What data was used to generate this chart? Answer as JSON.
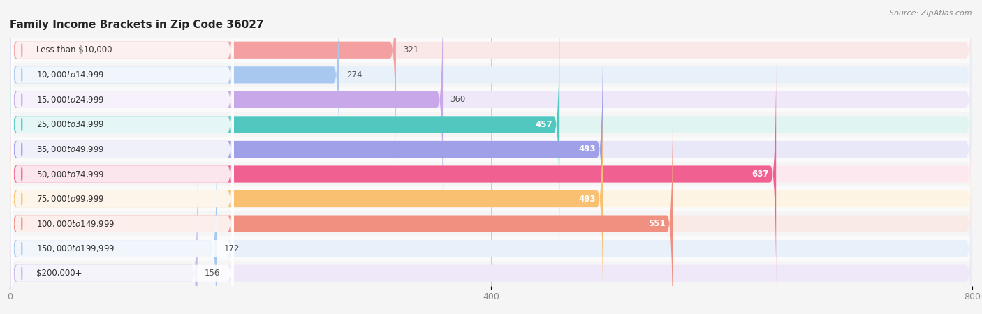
{
  "title": "Family Income Brackets in Zip Code 36027",
  "source": "Source: ZipAtlas.com",
  "categories": [
    "Less than $10,000",
    "$10,000 to $14,999",
    "$15,000 to $24,999",
    "$25,000 to $34,999",
    "$35,000 to $49,999",
    "$50,000 to $74,999",
    "$75,000 to $99,999",
    "$100,000 to $149,999",
    "$150,000 to $199,999",
    "$200,000+"
  ],
  "values": [
    321,
    274,
    360,
    457,
    493,
    637,
    493,
    551,
    172,
    156
  ],
  "colors": [
    "#F4A0A0",
    "#A8C8F0",
    "#C8A8E8",
    "#50C8C0",
    "#A0A0E8",
    "#F06090",
    "#F8C070",
    "#F09080",
    "#A8C8F0",
    "#C8B8E8"
  ],
  "bar_bg_colors": [
    "#FAE8E8",
    "#E8F0FA",
    "#EEE8F8",
    "#E0F4F2",
    "#E8E8F8",
    "#FDE8F0",
    "#FEF4E4",
    "#FAEAE6",
    "#E8F0FA",
    "#EEE8F8"
  ],
  "row_bg_colors": [
    "#fafafa",
    "#f5f5f5",
    "#fafafa",
    "#f5f5f5",
    "#fafafa",
    "#f5f5f5",
    "#fafafa",
    "#f5f5f5",
    "#fafafa",
    "#f5f5f5"
  ],
  "xlim_data": [
    0,
    800
  ],
  "xticks": [
    0,
    400,
    800
  ],
  "background_color": "#f5f5f5",
  "title_fontsize": 11,
  "label_fontsize": 8.5,
  "value_fontsize": 8.5
}
